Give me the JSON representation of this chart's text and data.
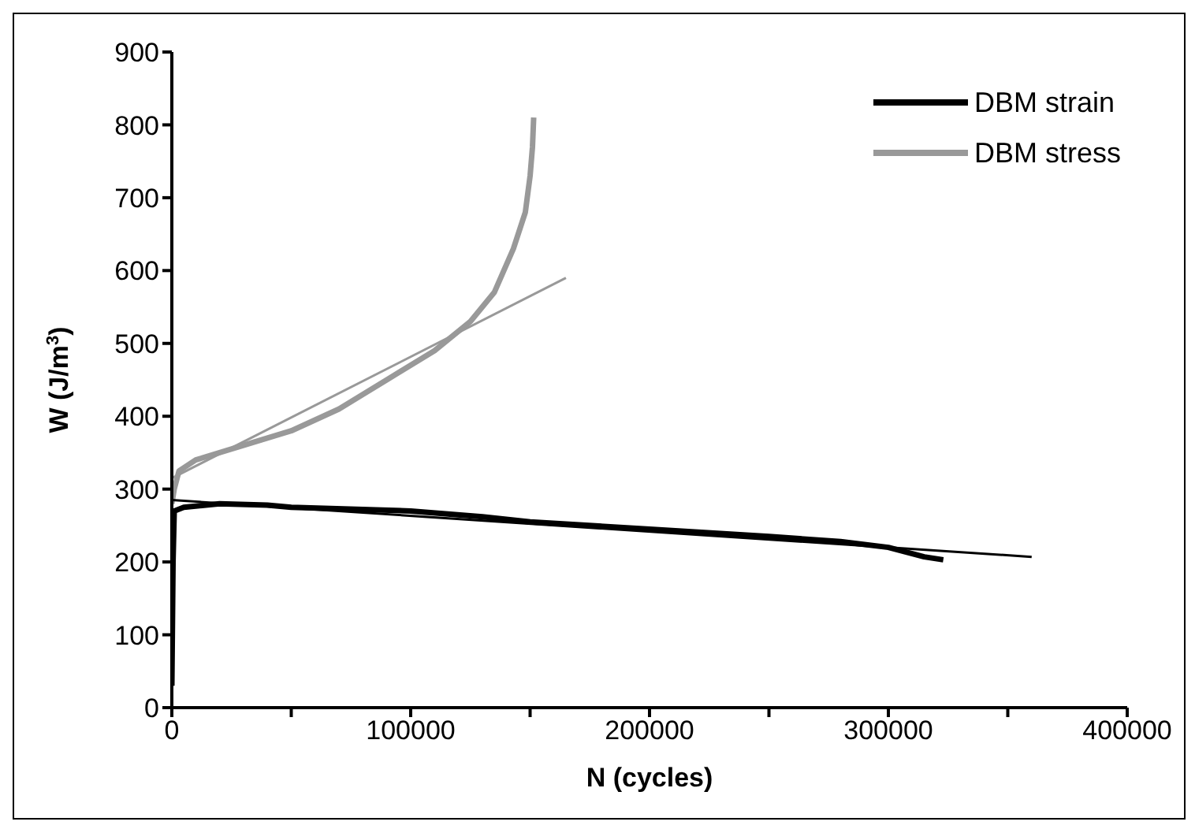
{
  "chart_data": {
    "type": "line",
    "xlabel": "N (cycles)",
    "ylabel": "W (J/m$^{3}$)",
    "xlim": [
      0,
      400000
    ],
    "xticks": [
      0,
      {
        "value": 50000,
        "label": null
      },
      100000,
      {
        "value": 150000,
        "label": null
      },
      200000,
      {
        "value": 250000,
        "label": null
      },
      300000,
      {
        "value": 350000,
        "label": null
      },
      400000
    ],
    "ylim": [
      0,
      900
    ],
    "yticks": [
      0,
      100,
      200,
      300,
      400,
      500,
      600,
      700,
      800,
      900
    ],
    "grid": false,
    "legend": "top right",
    "marker": "none",
    "line_style": "solid",
    "series": [
      {
        "name": "DBM strain",
        "color": "#000000",
        "x": [
          0,
          500,
          1000,
          5000,
          20000,
          40000,
          50000,
          100000,
          130000,
          150000,
          200000,
          250000,
          280000,
          300000,
          315000,
          323000
        ],
        "values": [
          30,
          200,
          270,
          275,
          280,
          278,
          275,
          270,
          262,
          255,
          245,
          235,
          228,
          220,
          207,
          203
        ]
      },
      {
        "name": "DBM stress",
        "color": "#999999",
        "x": [
          0,
          1000,
          3000,
          10000,
          30000,
          50000,
          70000,
          90000,
          110000,
          125000,
          135000,
          143000,
          148000,
          150000,
          151000,
          151500
        ],
        "values": [
          280,
          300,
          325,
          340,
          360,
          380,
          410,
          450,
          490,
          530,
          570,
          630,
          680,
          730,
          770,
          810
        ]
      },
      {
        "color": "#000000",
        "x": [
          0,
          360000
        ],
        "values": [
          285,
          207
        ]
      },
      {
        "color": "#999999",
        "x": [
          0,
          165000
        ],
        "values": [
          315,
          590
        ]
      }
    ]
  }
}
